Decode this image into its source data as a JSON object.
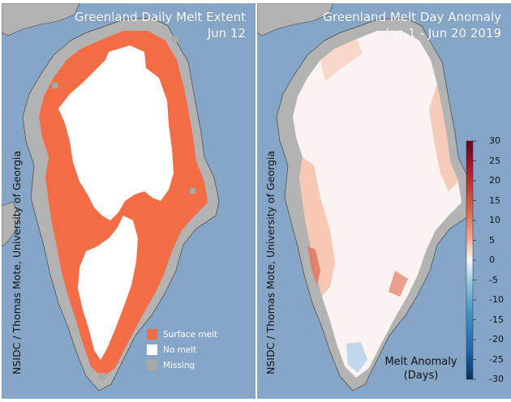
{
  "left_panel": {
    "title_line1": "Greenland Daily Melt Extent",
    "title_line2": "Jun 12",
    "credit": "NSIDC / Thomas Mote, University of Georgia",
    "legend": [
      {
        "label": "Surface melt",
        "color": "#f26d46"
      },
      {
        "label": "No melt",
        "color": "#ffffff"
      },
      {
        "label": "Missing",
        "color": "#a9a9a9"
      }
    ]
  },
  "right_panel": {
    "title_line1": "Greenland Melt Day Anomaly",
    "title_line2": "Jan 1 - Jun 20 2019",
    "credit": "NSIDC / Thomas Mote, University of Georgia",
    "colorbar": {
      "title_line1": "Melt Anomaly",
      "title_line2": "(Days)",
      "ticks": [
        "30",
        "25",
        "20",
        "15",
        "10",
        "5",
        "0",
        "-5",
        "-10",
        "-15",
        "-20",
        "-25",
        "-30"
      ],
      "min": -30,
      "max": 30
    }
  },
  "colors": {
    "ocean": "#86a6c8",
    "land": "#b3b3b3",
    "melt": "#f26d46",
    "ice": "#ffffff",
    "missing": "#a9a9a9"
  }
}
